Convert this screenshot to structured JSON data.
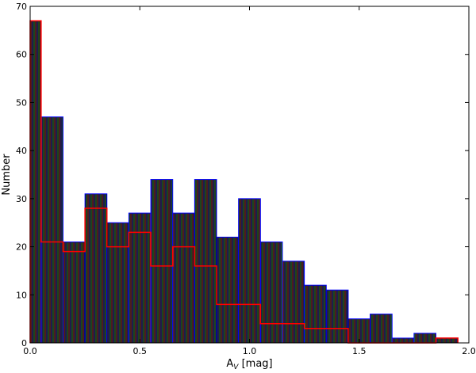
{
  "chart_data": {
    "type": "bar",
    "subtype": "histogram",
    "title": "",
    "xlabel": "A",
    "xlabel_sub": "V",
    "xlabel_unit": " [mag]",
    "ylabel": "Number",
    "xlim": [
      0.0,
      2.0
    ],
    "ylim": [
      0,
      70
    ],
    "xticks": [
      "0.0",
      "0.5",
      "1.0",
      "1.5",
      "2.0"
    ],
    "yticks": [
      "0",
      "10",
      "20",
      "30",
      "40",
      "50",
      "60",
      "70"
    ],
    "grid": false,
    "bin_edges": [
      0.0,
      0.05,
      0.15,
      0.25,
      0.35,
      0.45,
      0.55,
      0.65,
      0.75,
      0.85,
      0.95,
      1.05,
      1.15,
      1.25,
      1.35,
      1.45,
      1.55,
      1.65,
      1.75,
      1.85,
      1.95
    ],
    "series": [
      {
        "style": "filled",
        "color": "#0000ff",
        "values": [
          67,
          47,
          21,
          31,
          25,
          27,
          34,
          27,
          34,
          22,
          30,
          21,
          17,
          12,
          11,
          5,
          6,
          1,
          2,
          1
        ]
      },
      {
        "style": "step",
        "color": "#ff0000",
        "values": [
          67,
          21,
          19,
          28,
          20,
          23,
          16,
          20,
          16,
          8,
          8,
          4,
          4,
          3,
          3,
          0,
          0,
          0,
          0,
          1
        ]
      }
    ]
  }
}
